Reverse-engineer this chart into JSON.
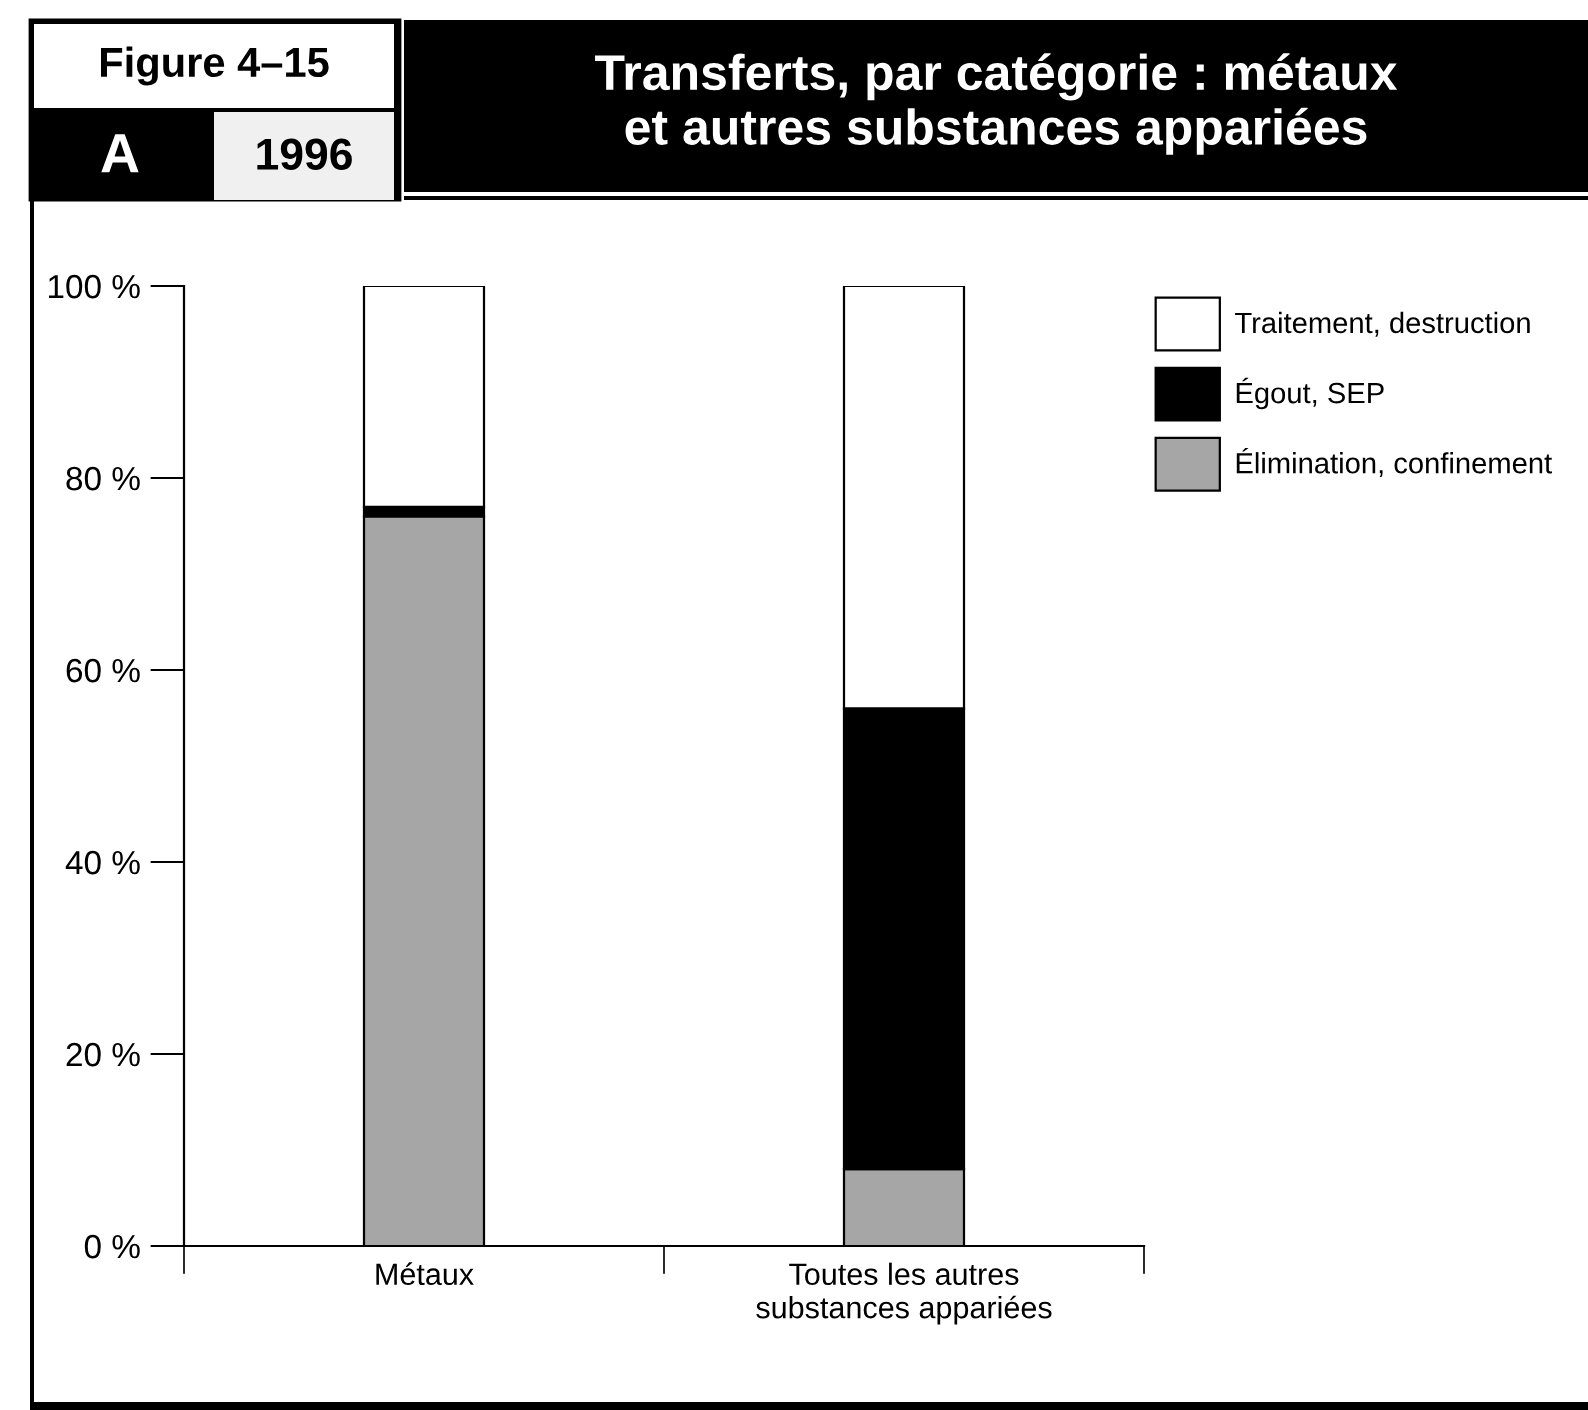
{
  "chart_data": {
    "type": "bar",
    "stacked": true,
    "title": "Transferts, par catégorie : métaux\net autres substances appariées",
    "annotations": [
      "Figure 4–15",
      "A",
      "1996"
    ],
    "categories": [
      "Métaux",
      "Toutes les autres\nsubstances appariées"
    ],
    "series": [
      {
        "name": "Élimination, confinement",
        "color": "#a6a6a6",
        "values": [
          76,
          8
        ]
      },
      {
        "name": "Égout, SEP",
        "color": "#000000",
        "values": [
          1,
          48
        ]
      },
      {
        "name": "Traitement, destruction",
        "color": "#ffffff",
        "values": [
          23,
          44
        ]
      }
    ],
    "ylim": [
      0,
      100
    ],
    "yticks": [
      {
        "value": 0,
        "label": "0 %"
      },
      {
        "value": 20,
        "label": "20 %"
      },
      {
        "value": 40,
        "label": "40 %"
      },
      {
        "value": 60,
        "label": "60 %"
      },
      {
        "value": 80,
        "label": "80 %"
      },
      {
        "value": 100,
        "label": "100 %"
      }
    ],
    "grid": false,
    "legend": "right"
  }
}
